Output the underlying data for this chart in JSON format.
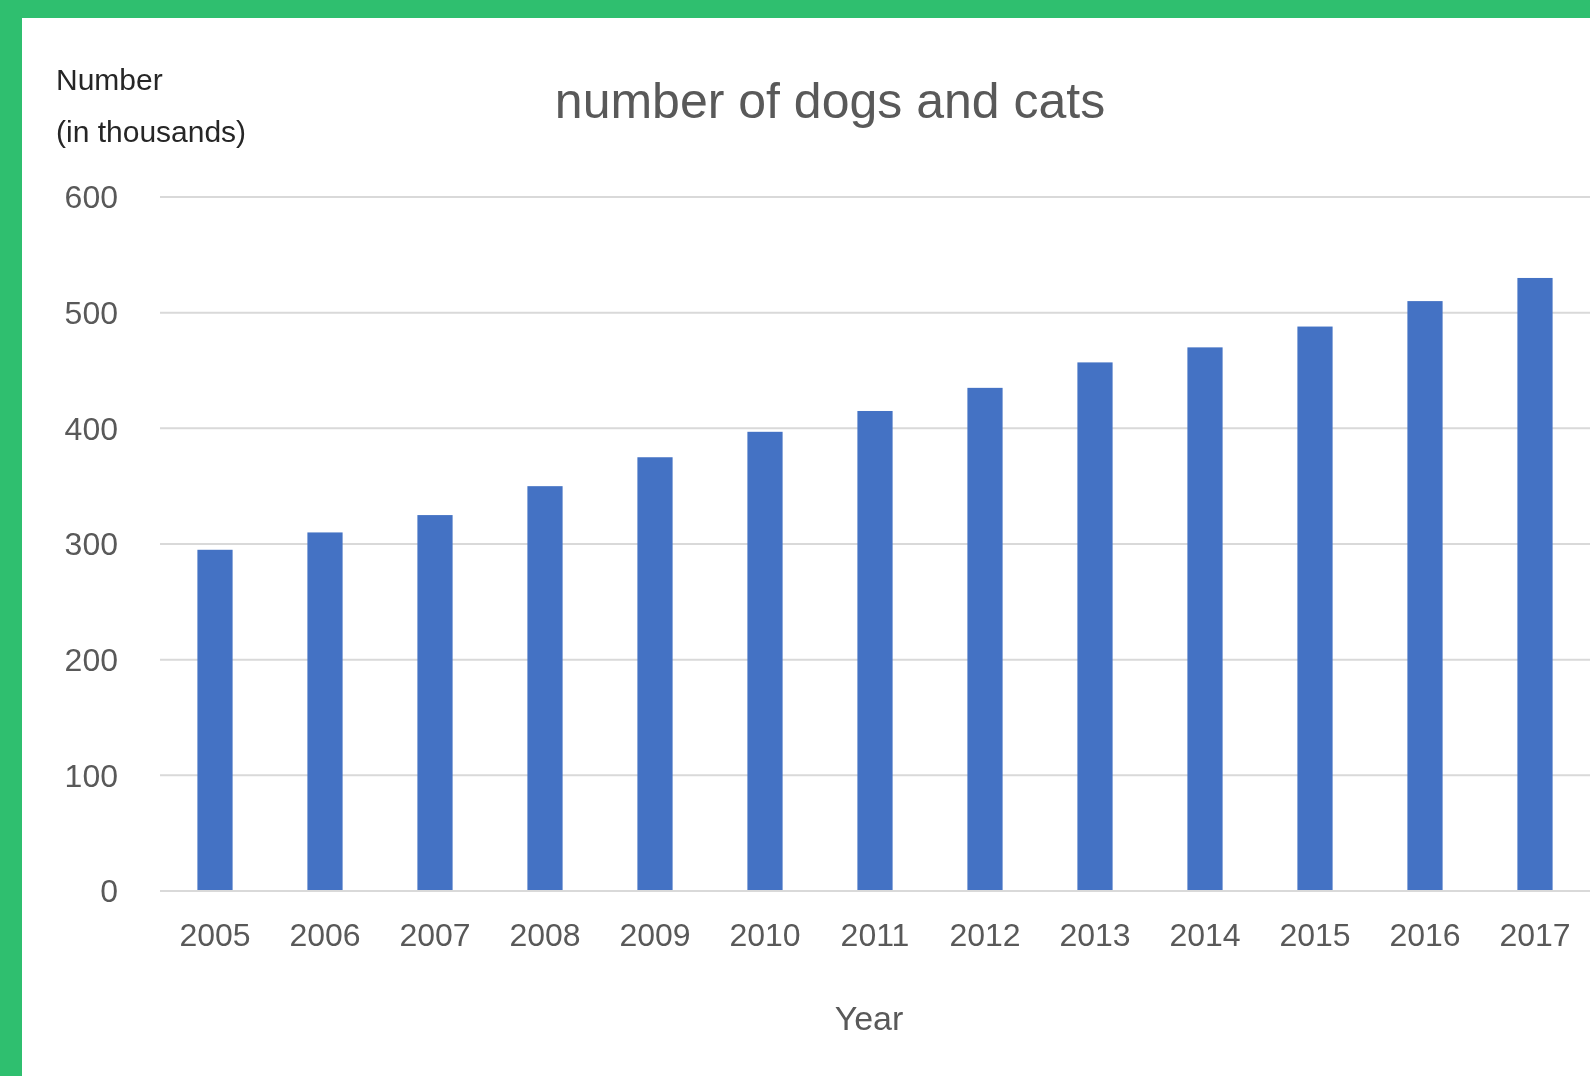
{
  "chart_data": {
    "type": "bar",
    "title": "number of dogs and cats",
    "xlabel": "Year",
    "ylabel": "Number\n(in thousands)",
    "categories": [
      "2005",
      "2006",
      "2007",
      "2008",
      "2009",
      "2010",
      "2011",
      "2012",
      "2013",
      "2014",
      "2015",
      "2016",
      "2017"
    ],
    "values": [
      295,
      310,
      325,
      350,
      375,
      397,
      415,
      435,
      457,
      470,
      488,
      510,
      530
    ],
    "color": "#4472c4",
    "ylim": [
      0,
      600
    ],
    "yticks": [
      0,
      100,
      200,
      300,
      400,
      500,
      600
    ],
    "grid": "y"
  }
}
